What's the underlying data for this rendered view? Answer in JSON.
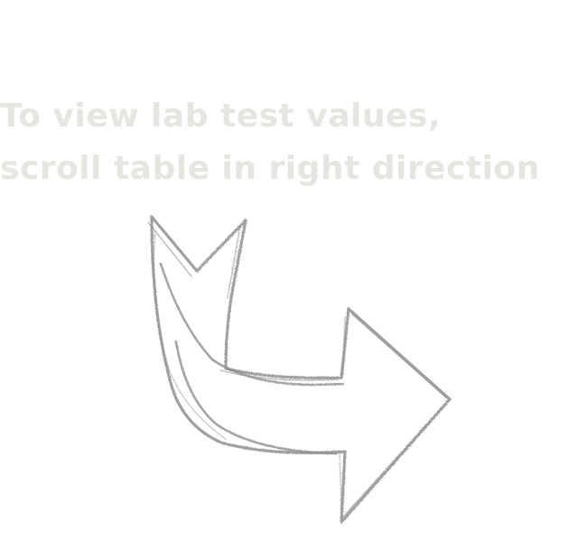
{
  "hint": {
    "line1": "To view lab test values,",
    "line2": "scroll table in right direction"
  },
  "arrow": {
    "icon": "curved-right-arrow-icon",
    "stroke_color": "#8f8f8f",
    "background": "#ffffff",
    "text_color": "#e6e6e1"
  }
}
